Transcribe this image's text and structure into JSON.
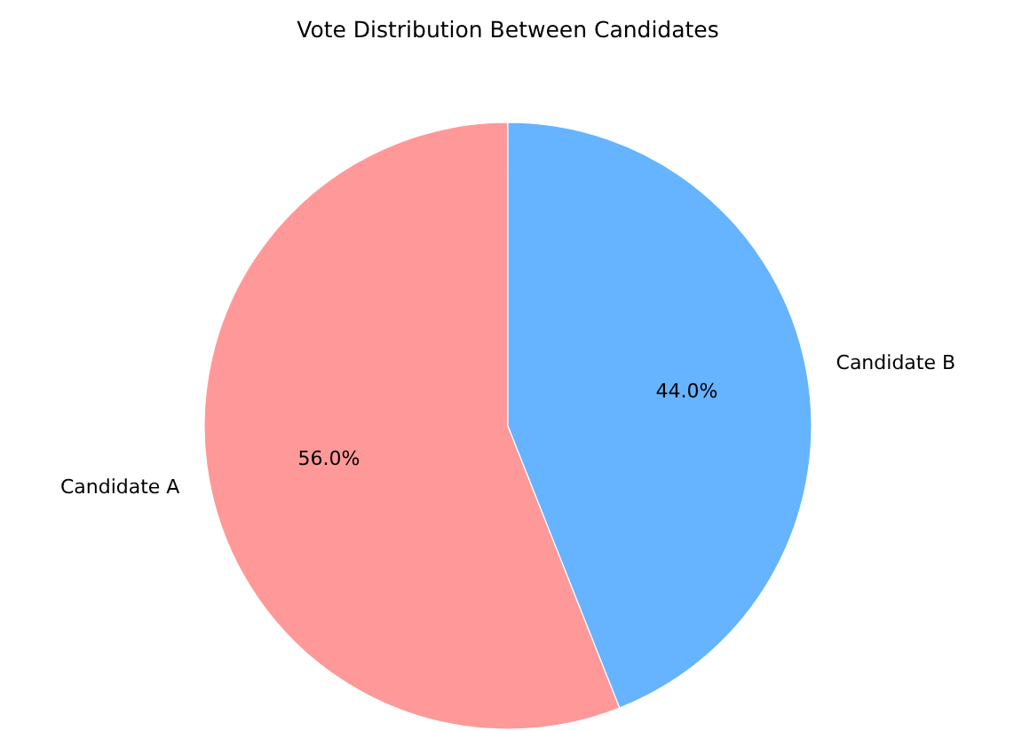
{
  "chart_data": {
    "type": "pie",
    "title": "Vote Distribution Between Candidates",
    "categories": [
      "Candidate A",
      "Candidate B"
    ],
    "values": [
      56.0,
      44.0
    ],
    "colors": [
      "#ff9999",
      "#66b3ff"
    ],
    "value_labels": [
      "56.0%",
      "44.0%"
    ]
  }
}
